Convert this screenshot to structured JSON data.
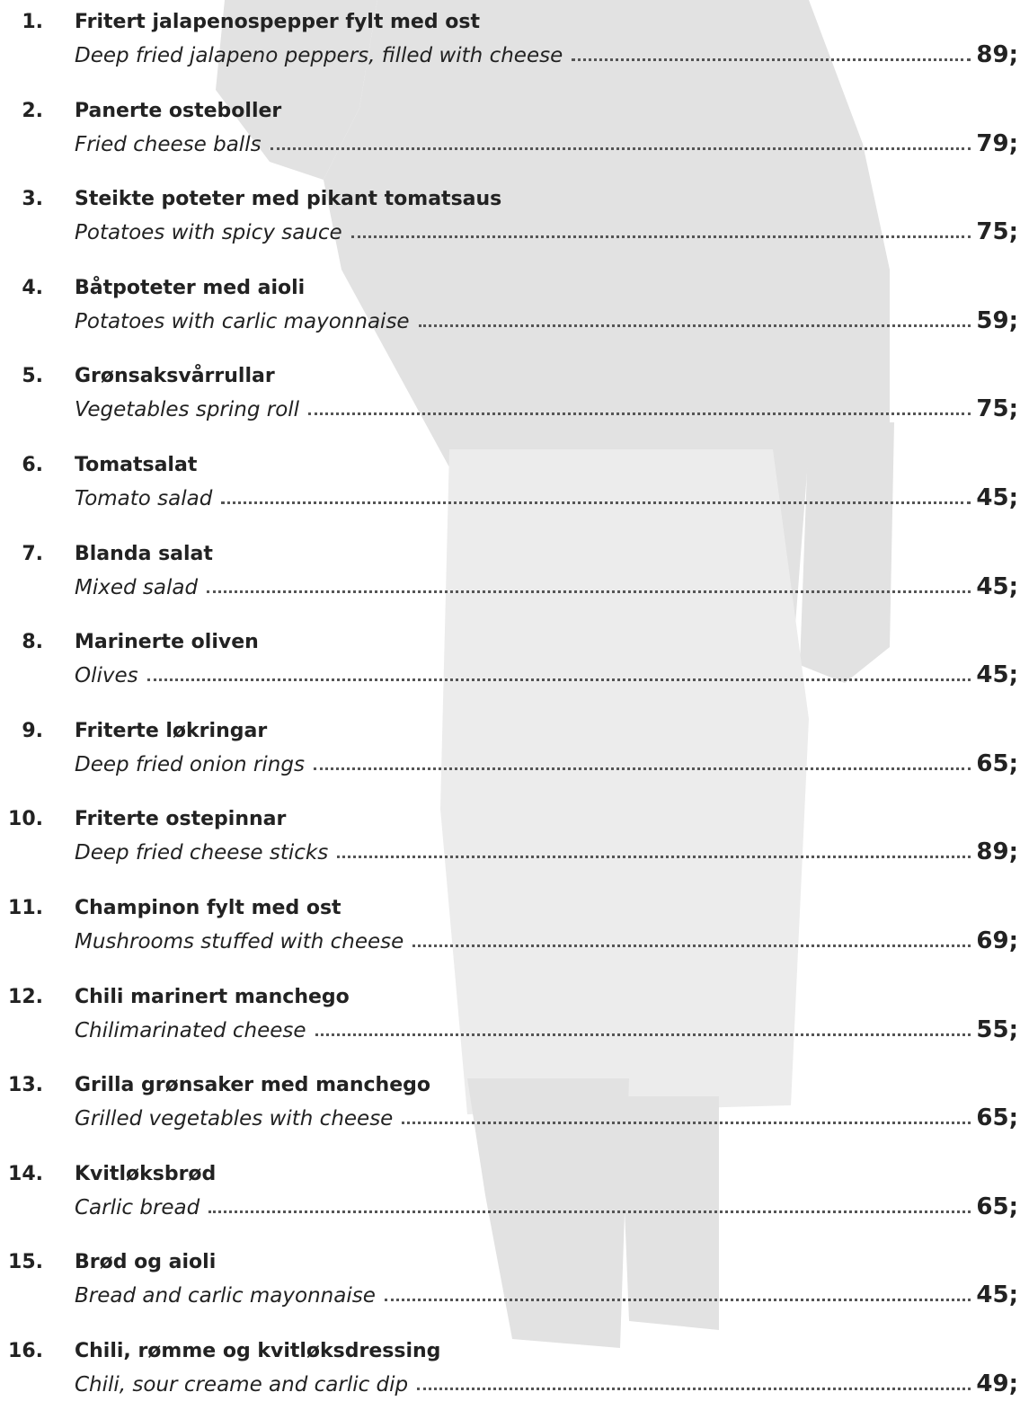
{
  "menu": {
    "items": [
      {
        "number": "1.",
        "name": "Fritert jalapenospepper fylt med ost",
        "description": "Deep fried jalapeno peppers, filled with cheese",
        "price": "89;"
      },
      {
        "number": "2.",
        "name": "Panerte osteboller",
        "description": "Fried cheese balls",
        "price": "79;"
      },
      {
        "number": "3.",
        "name": "Steikte poteter med pikant tomatsaus",
        "description": "Potatoes with spicy sauce",
        "price": "75;"
      },
      {
        "number": "4.",
        "name": "Båtpoteter med aioli",
        "description": "Potatoes with carlic mayonnaise",
        "price": "59;"
      },
      {
        "number": "5.",
        "name": "Grønsaksvårrullar",
        "description": "Vegetables spring roll",
        "price": "75;"
      },
      {
        "number": "6.",
        "name": "Tomatsalat",
        "description": "Tomato salad",
        "price": "45;"
      },
      {
        "number": "7.",
        "name": "Blanda salat",
        "description": "Mixed salad",
        "price": "45;"
      },
      {
        "number": "8.",
        "name": "Marinerte oliven",
        "description": "Olives",
        "price": "45;"
      },
      {
        "number": "9.",
        "name": "Friterte løkringar",
        "description": "Deep fried onion rings",
        "price": "65;"
      },
      {
        "number": "10.",
        "name": "Friterte ostepinnar",
        "description": "Deep fried cheese sticks",
        "price": "89;"
      },
      {
        "number": "11.",
        "name": "Champinon fylt med ost",
        "description": "Mushrooms stuffed with cheese",
        "price": "69;"
      },
      {
        "number": "12.",
        "name": "Chili marinert manchego",
        "description": "Chilimarinated cheese",
        "price": "55;"
      },
      {
        "number": "13.",
        "name": "Grilla grønsaker med manchego",
        "description": "Grilled vegetables with cheese",
        "price": "65;"
      },
      {
        "number": "14.",
        "name": "Kvitløksbrød",
        "description": "Carlic bread",
        "price": "65;"
      },
      {
        "number": "15.",
        "name": "Brød og aioli",
        "description": "Bread and carlic mayonnaise",
        "price": "45;"
      },
      {
        "number": "16.",
        "name": "Chili, rømme og kvitløksdressing",
        "description": "Chili, sour creame and carlic dip",
        "price": "49;"
      }
    ]
  }
}
